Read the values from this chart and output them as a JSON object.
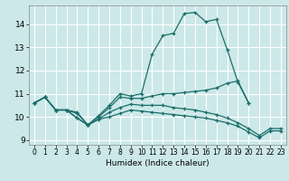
{
  "xlabel": "Humidex (Indice chaleur)",
  "background_color": "#cce8e8",
  "grid_color": "#ffffff",
  "line_color": "#1a6e6a",
  "xlim": [
    -0.5,
    23.5
  ],
  "ylim": [
    8.8,
    14.8
  ],
  "xticks": [
    0,
    1,
    2,
    3,
    4,
    5,
    6,
    7,
    8,
    9,
    10,
    11,
    12,
    13,
    14,
    15,
    16,
    17,
    18,
    19,
    20,
    21,
    22,
    23
  ],
  "yticks": [
    9,
    10,
    11,
    12,
    13,
    14
  ],
  "lines": [
    {
      "x": [
        0,
        1,
        2,
        3,
        4,
        5,
        6,
        7,
        8,
        9,
        10,
        11,
        12,
        13,
        14,
        15,
        16,
        17,
        18,
        19,
        20
      ],
      "y": [
        10.6,
        10.85,
        10.3,
        10.3,
        10.2,
        9.65,
        10.05,
        10.5,
        11.0,
        10.9,
        11.0,
        12.7,
        13.5,
        13.6,
        14.45,
        14.5,
        14.1,
        14.2,
        12.9,
        11.5,
        10.6
      ]
    },
    {
      "x": [
        0,
        1,
        2,
        3,
        4,
        5,
        6,
        7,
        8,
        9,
        10,
        11,
        12,
        13,
        14,
        15,
        16,
        17,
        18,
        19,
        20
      ],
      "y": [
        10.6,
        10.85,
        10.3,
        10.3,
        10.15,
        9.65,
        10.0,
        10.4,
        10.85,
        10.8,
        10.8,
        10.9,
        11.0,
        11.0,
        11.05,
        11.1,
        11.15,
        11.25,
        11.45,
        11.55,
        10.6
      ]
    },
    {
      "x": [
        0,
        1,
        2,
        3,
        4,
        5,
        6,
        7,
        8,
        9,
        10,
        11,
        12,
        13,
        14,
        15,
        16,
        17,
        18,
        19,
        20,
        21,
        22,
        23
      ],
      "y": [
        10.6,
        10.85,
        10.3,
        10.3,
        9.95,
        9.65,
        9.9,
        10.2,
        10.4,
        10.55,
        10.5,
        10.5,
        10.5,
        10.4,
        10.35,
        10.3,
        10.2,
        10.1,
        9.95,
        9.75,
        9.5,
        9.2,
        9.5,
        9.5
      ]
    },
    {
      "x": [
        0,
        1,
        2,
        3,
        4,
        5,
        6,
        7,
        8,
        9,
        10,
        11,
        12,
        13,
        14,
        15,
        16,
        17,
        18,
        19,
        20,
        21,
        22,
        23
      ],
      "y": [
        10.6,
        10.85,
        10.3,
        10.3,
        9.95,
        9.65,
        9.9,
        10.0,
        10.15,
        10.3,
        10.25,
        10.2,
        10.15,
        10.1,
        10.05,
        10.0,
        9.95,
        9.85,
        9.75,
        9.6,
        9.35,
        9.1,
        9.4,
        9.4
      ]
    }
  ]
}
